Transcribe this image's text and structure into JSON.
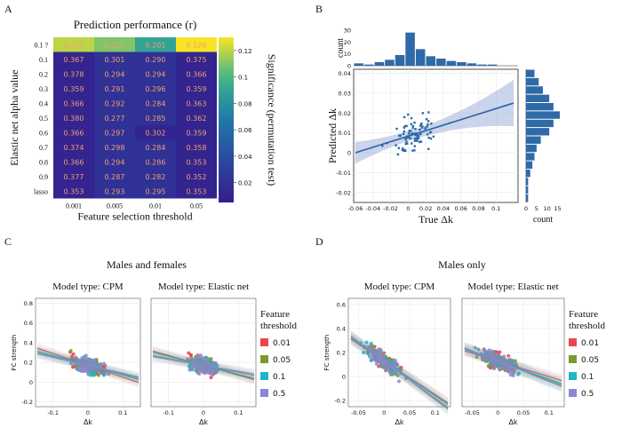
{
  "panel_labels": {
    "a": "A",
    "b": "B",
    "c": "C",
    "d": "D"
  },
  "chart_data": [
    {
      "id": "A",
      "type": "heatmap",
      "title": "Prediction performance (r)",
      "xlabel": "Feature selection threshold",
      "ylabel": "Elastic net alpha value",
      "x_categories": [
        "0.001",
        "0.005",
        "0.01",
        "0.05"
      ],
      "y_categories": [
        "0.1 ?",
        "0.1",
        "0.2",
        "0.3",
        "0.4",
        "0.5",
        "0.6",
        "0.7",
        "0.8",
        "0.9",
        "lasso"
      ],
      "values": [
        [
          "0.221",
          "0.210",
          "0.201",
          "0.126"
        ],
        [
          "0.367",
          "0.301",
          "0.290",
          "0.375"
        ],
        [
          "0.378",
          "0.294",
          "0.294",
          "0.366"
        ],
        [
          "0.359",
          "0.291",
          "0.296",
          "0.359"
        ],
        [
          "0.366",
          "0.292",
          "0.284",
          "0.363"
        ],
        [
          "0.380",
          "0.277",
          "0.285",
          "0.362"
        ],
        [
          "0.366",
          "0.297",
          "0.302",
          "0.359"
        ],
        [
          "0.374",
          "0.298",
          "0.284",
          "0.358"
        ],
        [
          "0.366",
          "0.294",
          "0.286",
          "0.353"
        ],
        [
          "0.377",
          "0.287",
          "0.282",
          "0.352"
        ],
        [
          "0.353",
          "0.293",
          "0.295",
          "0.353"
        ]
      ],
      "significance": [
        [
          0.12,
          0.11,
          0.09,
          0.13
        ],
        [
          0.01,
          0.02,
          0.02,
          0.01
        ],
        [
          0.01,
          0.02,
          0.02,
          0.01
        ],
        [
          0.01,
          0.02,
          0.02,
          0.01
        ],
        [
          0.01,
          0.02,
          0.02,
          0.01
        ],
        [
          0.01,
          0.02,
          0.02,
          0.01
        ],
        [
          0.01,
          0.02,
          0.01,
          0.01
        ],
        [
          0.01,
          0.02,
          0.02,
          0.01
        ],
        [
          0.01,
          0.02,
          0.02,
          0.01
        ],
        [
          0.01,
          0.02,
          0.02,
          0.01
        ],
        [
          0.01,
          0.02,
          0.02,
          0.01
        ]
      ],
      "colorbar_label": "Significance (permutation test)",
      "colorbar_ticks": [
        "0.12",
        "0.1",
        "0.08",
        "0.06",
        "0.04",
        "0.02"
      ],
      "colorbar_range": [
        0.005,
        0.13
      ]
    },
    {
      "id": "B",
      "type": "scatter",
      "xlabel": "True Δk",
      "ylabel": "Predicted Δk",
      "x_ticks": [
        "-0.06",
        "-0.04",
        "-0.02",
        "0",
        "0.02",
        "0.04",
        "0.06",
        "0.08",
        "0.1"
      ],
      "y_ticks": [
        "0.04",
        "0.03",
        "0.02",
        "0.01",
        "0",
        "-0.01",
        "-0.02"
      ],
      "xlim": [
        -0.062,
        0.125
      ],
      "ylim": [
        -0.025,
        0.042
      ],
      "regression": {
        "x0": -0.06,
        "y0": 0.0,
        "x1": 0.12,
        "y1": 0.025
      },
      "top_hist_label": "count",
      "top_hist_ticks": [
        "30",
        "20",
        "10",
        "0"
      ],
      "top_hist_bins": [
        2,
        1,
        3,
        5,
        9,
        28,
        14,
        8,
        6,
        4,
        3,
        2,
        1,
        1,
        0,
        0
      ],
      "right_hist_label": "count",
      "right_hist_ticks": [
        "0",
        "5",
        "10",
        "15"
      ],
      "right_hist_bins": [
        4,
        6,
        8,
        11,
        13,
        16,
        13,
        11,
        7,
        5,
        4,
        3,
        2,
        1,
        1,
        1
      ]
    },
    {
      "id": "C",
      "type": "scatter",
      "title": "Males and females",
      "ylabel": "FC strength",
      "xlabel": "Δk",
      "legend_title": "Feature threshold",
      "legend_items": [
        {
          "label": "0.01",
          "color": "#e8474f"
        },
        {
          "label": "0.05",
          "color": "#7c9a2c"
        },
        {
          "label": "0.1",
          "color": "#1fb5c9"
        },
        {
          "label": "0.5",
          "color": "#8c88d6"
        }
      ],
      "subplots": [
        {
          "title": "Model type: CPM",
          "x_ticks": [
            "-0.1",
            "0",
            "0.1"
          ],
          "y_ticks": [
            "0.8",
            "0.6",
            "0.4",
            "0.2",
            "0",
            "-0.2"
          ]
        },
        {
          "title": "Model type: Elastic net",
          "x_ticks": [
            "-0.1",
            "0",
            "0.1"
          ]
        }
      ],
      "xlim": [
        -0.15,
        0.15
      ],
      "ylim": [
        -0.25,
        0.85
      ]
    },
    {
      "id": "D",
      "type": "scatter",
      "title": "Males only",
      "ylabel": "FC strength",
      "xlabel": "Δk",
      "legend_title": "Feature threshold",
      "legend_items": [
        {
          "label": "0.01",
          "color": "#e8474f"
        },
        {
          "label": "0.05",
          "color": "#7c9a2c"
        },
        {
          "label": "0.1",
          "color": "#1fb5c9"
        },
        {
          "label": "0.5",
          "color": "#8c88d6"
        }
      ],
      "subplots": [
        {
          "title": "Model type: CPM",
          "x_ticks": [
            "-0.05",
            "0",
            "0.05",
            "0.1"
          ],
          "y_ticks": [
            "0.6",
            "0.4",
            "0.2",
            "0",
            "-0.2"
          ]
        },
        {
          "title": "Model type: Elastic net",
          "x_ticks": [
            "-0.05",
            "0",
            "0.05",
            "0.1"
          ]
        }
      ],
      "xlim": [
        -0.07,
        0.13
      ],
      "ylim": [
        -0.25,
        0.65
      ]
    }
  ]
}
